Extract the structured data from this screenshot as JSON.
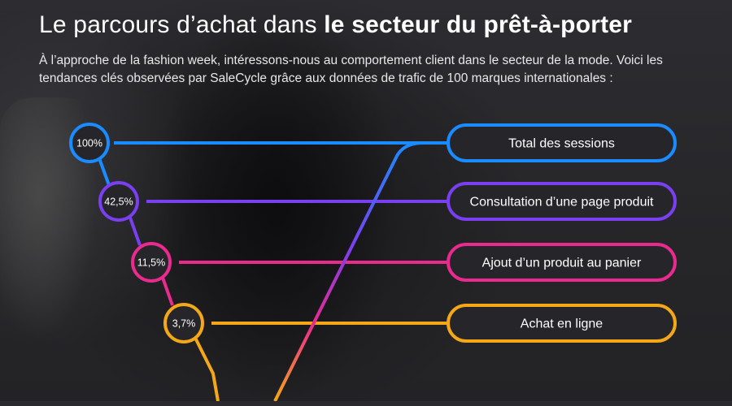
{
  "header": {
    "title_light": "Le parcours d’achat dans ",
    "title_bold": "le secteur du prêt-à-porter",
    "subtitle": "À l’approche de la fashion week, intéressons-nous au comportement client dans le secteur de la mode. Voici les tendances clés observées par SaleCycle grâce aux données de trafic de 100 marques internationales :"
  },
  "funnel": [
    {
      "label": "Total des sessions",
      "percent": "100%",
      "color": "#1a8cff"
    },
    {
      "label": "Consultation d’une page produit",
      "percent": "42,5%",
      "color": "#7b3ff2"
    },
    {
      "label": "Ajout d’un produit au panier",
      "percent": "11,5%",
      "color": "#ea2a8e"
    },
    {
      "label": "Achat en ligne",
      "percent": "3,7%",
      "color": "#f5a817"
    }
  ]
}
